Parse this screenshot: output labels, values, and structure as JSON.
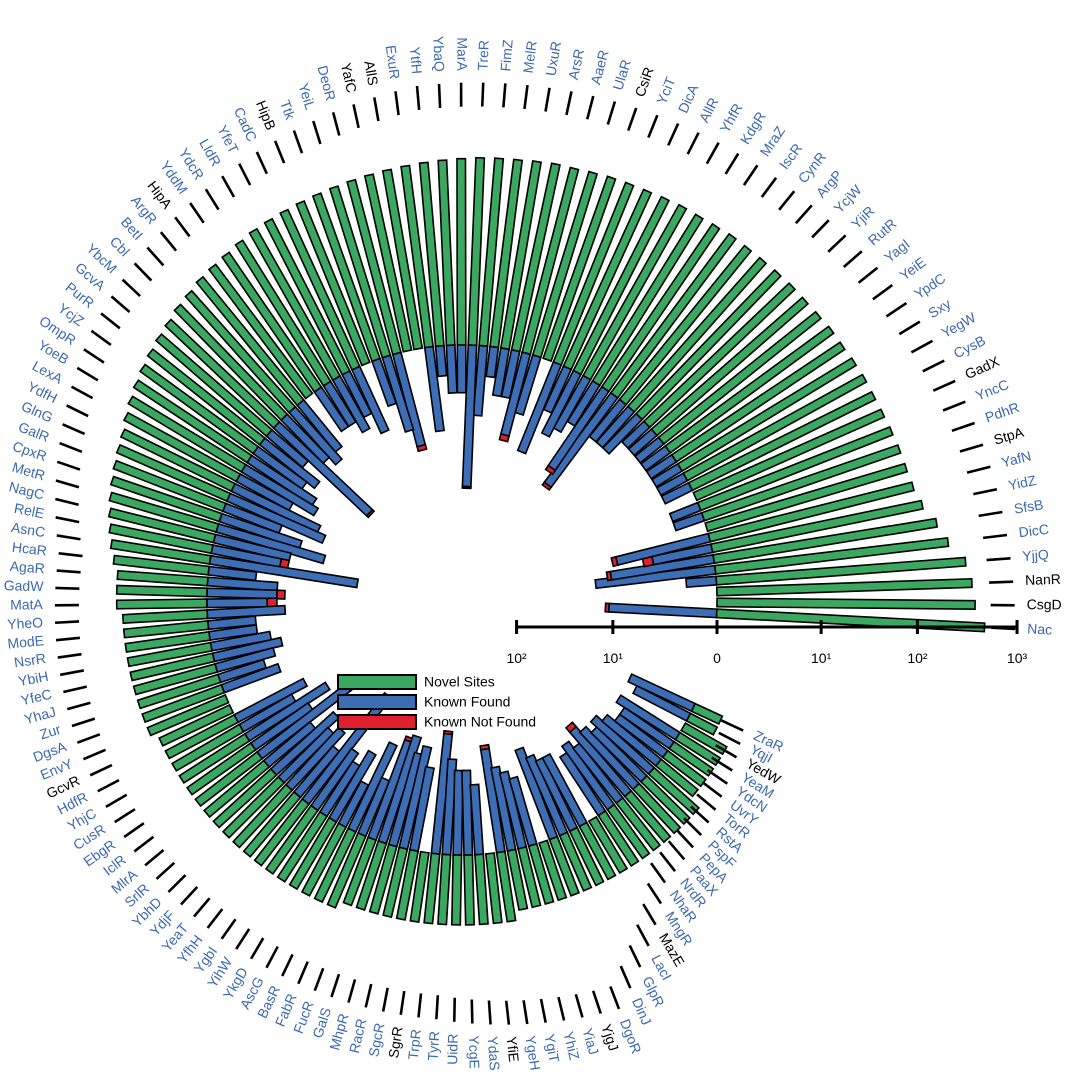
{
  "chart_data": {
    "type": "radial_bar",
    "log_scale": true,
    "categories": [
      "Nac",
      "CsgD",
      "NanR",
      "YjjQ",
      "DicC",
      "SfsB",
      "YidZ",
      "YafN",
      "StpA",
      "PdhR",
      "YncC",
      "GadX",
      "CysB",
      "YegW",
      "Sxy",
      "YpdC",
      "YeiE",
      "YagI",
      "RutR",
      "YjiR",
      "YcjW",
      "ArgP",
      "CynR",
      "IscR",
      "MraZ",
      "KdgR",
      "YhfR",
      "AllR",
      "DicA",
      "YciT",
      "CsiR",
      "UlaR",
      "AaeR",
      "ArsR",
      "UxuR",
      "MelR",
      "FimZ",
      "TreR",
      "MarA",
      "YbaQ",
      "YtfH",
      "ExuR",
      "AllS",
      "YafC",
      "DeoR",
      "YeiL",
      "Ttk",
      "HipB",
      "CadC",
      "YfeT",
      "LldR",
      "YdcR",
      "YddM",
      "HipA",
      "ArgR",
      "BetI",
      "Cbl",
      "YbcM",
      "GcvA",
      "PurR",
      "YcjZ",
      "OmpR",
      "YoeB",
      "LexA",
      "YdfH",
      "GlnG",
      "GalR",
      "CpxR",
      "MetR",
      "NagC",
      "RelE",
      "AsnC",
      "HcaR",
      "AgaR",
      "GadW",
      "MatA",
      "YheO",
      "ModE",
      "NsrR",
      "YbiH",
      "YfeC",
      "YhaJ",
      "Zur",
      "DgsA",
      "EnvY",
      "GcvR",
      "HdfR",
      "YhjC",
      "CusR",
      "EbgR",
      "IclR",
      "MlrA",
      "SrlR",
      "YbhD",
      "YdjF",
      "YeaT",
      "YfhH",
      "YgbI",
      "YihW",
      "YkgD",
      "AscG",
      "BasR",
      "FabR",
      "FucR",
      "GalS",
      "MhpR",
      "RacR",
      "SgcR",
      "SgrR",
      "TrpR",
      "TyrR",
      "UidR",
      "YcgE",
      "YdaS",
      "YfiE",
      "YgeH",
      "YgiT",
      "YhiZ",
      "YiaJ",
      "YjgJ",
      "DgoR",
      "DinJ",
      "GlpR",
      "LacI",
      "MazE",
      "MngR",
      "NhaR",
      "NrdR",
      "PaaX",
      "PepA",
      "PspF",
      "RstA",
      "TorR",
      "UvrY",
      "YdcN",
      "YeaM",
      "YedW",
      "YqjI",
      "ZraR"
    ],
    "label_colors": [
      "#3b69b0",
      "#000000",
      "#000000",
      "#3b69b0",
      "#3b69b0",
      "#3b69b0",
      "#3b69b0",
      "#3b69b0",
      "#000000",
      "#3b69b0",
      "#3b69b0",
      "#000000",
      "#3b69b0",
      "#3b69b0",
      "#3b69b0",
      "#3b69b0",
      "#3b69b0",
      "#3b69b0",
      "#3b69b0",
      "#3b69b0",
      "#3b69b0",
      "#3b69b0",
      "#3b69b0",
      "#3b69b0",
      "#3b69b0",
      "#3b69b0",
      "#3b69b0",
      "#3b69b0",
      "#3b69b0",
      "#3b69b0",
      "#000000",
      "#3b69b0",
      "#3b69b0",
      "#3b69b0",
      "#3b69b0",
      "#3b69b0",
      "#3b69b0",
      "#3b69b0",
      "#3b69b0",
      "#3b69b0",
      "#3b69b0",
      "#3b69b0",
      "#000000",
      "#000000",
      "#3b69b0",
      "#3b69b0",
      "#3b69b0",
      "#000000",
      "#3b69b0",
      "#3b69b0",
      "#3b69b0",
      "#3b69b0",
      "#3b69b0",
      "#000000",
      "#3b69b0",
      "#3b69b0",
      "#3b69b0",
      "#3b69b0",
      "#3b69b0",
      "#3b69b0",
      "#3b69b0",
      "#3b69b0",
      "#3b69b0",
      "#3b69b0",
      "#3b69b0",
      "#3b69b0",
      "#3b69b0",
      "#3b69b0",
      "#3b69b0",
      "#3b69b0",
      "#3b69b0",
      "#3b69b0",
      "#3b69b0",
      "#3b69b0",
      "#3b69b0",
      "#3b69b0",
      "#3b69b0",
      "#3b69b0",
      "#3b69b0",
      "#3b69b0",
      "#3b69b0",
      "#3b69b0",
      "#3b69b0",
      "#3b69b0",
      "#3b69b0",
      "#000000",
      "#3b69b0",
      "#3b69b0",
      "#3b69b0",
      "#3b69b0",
      "#3b69b0",
      "#3b69b0",
      "#3b69b0",
      "#3b69b0",
      "#3b69b0",
      "#3b69b0",
      "#3b69b0",
      "#3b69b0",
      "#3b69b0",
      "#3b69b0",
      "#3b69b0",
      "#3b69b0",
      "#3b69b0",
      "#3b69b0",
      "#3b69b0",
      "#3b69b0",
      "#3b69b0",
      "#3b69b0",
      "#000000",
      "#3b69b0",
      "#3b69b0",
      "#3b69b0",
      "#3b69b0",
      "#3b69b0",
      "#000000",
      "#3b69b0",
      "#3b69b0",
      "#3b69b0",
      "#3b69b0",
      "#000000",
      "#3b69b0",
      "#3b69b0",
      "#3b69b0",
      "#3b69b0",
      "#000000",
      "#3b69b0",
      "#3b69b0",
      "#3b69b0",
      "#3b69b0",
      "#3b69b0",
      "#3b69b0",
      "#3b69b0",
      "#3b69b0",
      "#3b69b0",
      "#3b69b0",
      "#3b69b0",
      "#000000",
      "#3b69b0",
      "#3b69b0"
    ],
    "series": [
      {
        "name": "Novel Sites",
        "color": "#3aa860",
        "direction": "outward",
        "values": [
          480,
          380,
          355,
          315,
          220,
          180,
          140,
          125,
          120,
          118,
          115,
          112,
          110,
          110,
          108,
          105,
          105,
          102,
          100,
          100,
          98,
          96,
          95,
          95,
          92,
          90,
          90,
          88,
          86,
          85,
          84,
          82,
          80,
          80,
          78,
          76,
          75,
          74,
          72,
          70,
          68,
          66,
          64,
          62,
          60,
          58,
          56,
          54,
          52,
          50,
          48,
          45,
          42,
          40,
          38,
          35,
          33,
          30,
          28,
          26,
          24,
          22,
          20,
          18,
          16,
          15,
          14,
          13,
          12,
          11,
          10,
          9,
          8,
          7,
          7,
          7,
          6,
          6,
          6,
          6,
          6,
          6,
          6,
          6,
          6,
          5,
          5,
          5,
          5,
          5,
          5,
          5,
          5,
          5,
          5,
          5,
          5,
          5,
          5,
          5,
          5,
          5,
          5,
          4,
          4,
          4,
          4,
          4,
          4,
          4,
          4,
          4,
          4,
          4,
          4,
          4,
          3,
          3,
          3,
          3,
          3,
          3,
          3,
          3,
          3,
          3,
          3,
          3,
          3,
          3,
          3,
          3,
          2,
          2,
          2,
          2,
          2,
          1,
          1
        ]
      },
      {
        "name": "Known Found",
        "color": "#3d6db5",
        "direction": "inward",
        "values": [
          11,
          0,
          0,
          1,
          15,
          10,
          3,
          8,
          0,
          1,
          1,
          0,
          1,
          1,
          1,
          1,
          1,
          1,
          1,
          1,
          2,
          2,
          2,
          12,
          8,
          2,
          3,
          4,
          2,
          8,
          0,
          3,
          6,
          2,
          2,
          1,
          4,
          25,
          2,
          2,
          1,
          6,
          0,
          0,
          8,
          5,
          2,
          0,
          4,
          2,
          3,
          2,
          2,
          0,
          3,
          4,
          3,
          18,
          2,
          4,
          3,
          5,
          6,
          3,
          8,
          10,
          3,
          6,
          12,
          5,
          4,
          30,
          2,
          4,
          4,
          3,
          5,
          2,
          2,
          3,
          4,
          3,
          2,
          3,
          0,
          0,
          5,
          3,
          8,
          4,
          12,
          3,
          6,
          4,
          5,
          3,
          20,
          4,
          3,
          5,
          2,
          8,
          3,
          10,
          12,
          8,
          10,
          6,
          0,
          15,
          8,
          6,
          6,
          4,
          0,
          10,
          6,
          5,
          4,
          0,
          8,
          6,
          5,
          5,
          0,
          4,
          5,
          4,
          6,
          5,
          4,
          5,
          4,
          3,
          3,
          4,
          0,
          3,
          4
        ]
      },
      {
        "name": "Known Not Found",
        "color": "#e0202e",
        "direction": "inward",
        "values": [
          1,
          0,
          0,
          0,
          0,
          1,
          1,
          1,
          0,
          0,
          0,
          0,
          0,
          0,
          0,
          0,
          0,
          0,
          0,
          0,
          0,
          0,
          0,
          1,
          1,
          0,
          0,
          0,
          0,
          0,
          0,
          0,
          1,
          0,
          0,
          0,
          0,
          1,
          0,
          0,
          0,
          0,
          0,
          0,
          1,
          0,
          0,
          0,
          0,
          0,
          0,
          0,
          0,
          0,
          0,
          0,
          0,
          1,
          0,
          0,
          0,
          0,
          0,
          0,
          0,
          0,
          0,
          0,
          0,
          0,
          1,
          0,
          0,
          0,
          1,
          1,
          0,
          0,
          0,
          0,
          0,
          0,
          0,
          0,
          0,
          0,
          0,
          0,
          0,
          0,
          1,
          0,
          0,
          0,
          0,
          0,
          1,
          0,
          0,
          0,
          0,
          0,
          0,
          1,
          0,
          0,
          0,
          0,
          0,
          1,
          0,
          0,
          0,
          0,
          0,
          1,
          0,
          0,
          0,
          0,
          0,
          0,
          0,
          0,
          0,
          0,
          0,
          0,
          1,
          0,
          0,
          0,
          0,
          0,
          0,
          0,
          0,
          0,
          0
        ]
      }
    ],
    "xticks": [
      0,
      {
        "value": 10,
        "label": "10¹"
      },
      {
        "value": 100,
        "label": "10²"
      },
      {
        "value": 1000,
        "label": "10³"
      }
    ],
    "inner_ticks": [
      {
        "value": 100,
        "label": "10²"
      },
      {
        "value": 10,
        "label": "10¹"
      }
    ],
    "legend": "center"
  }
}
